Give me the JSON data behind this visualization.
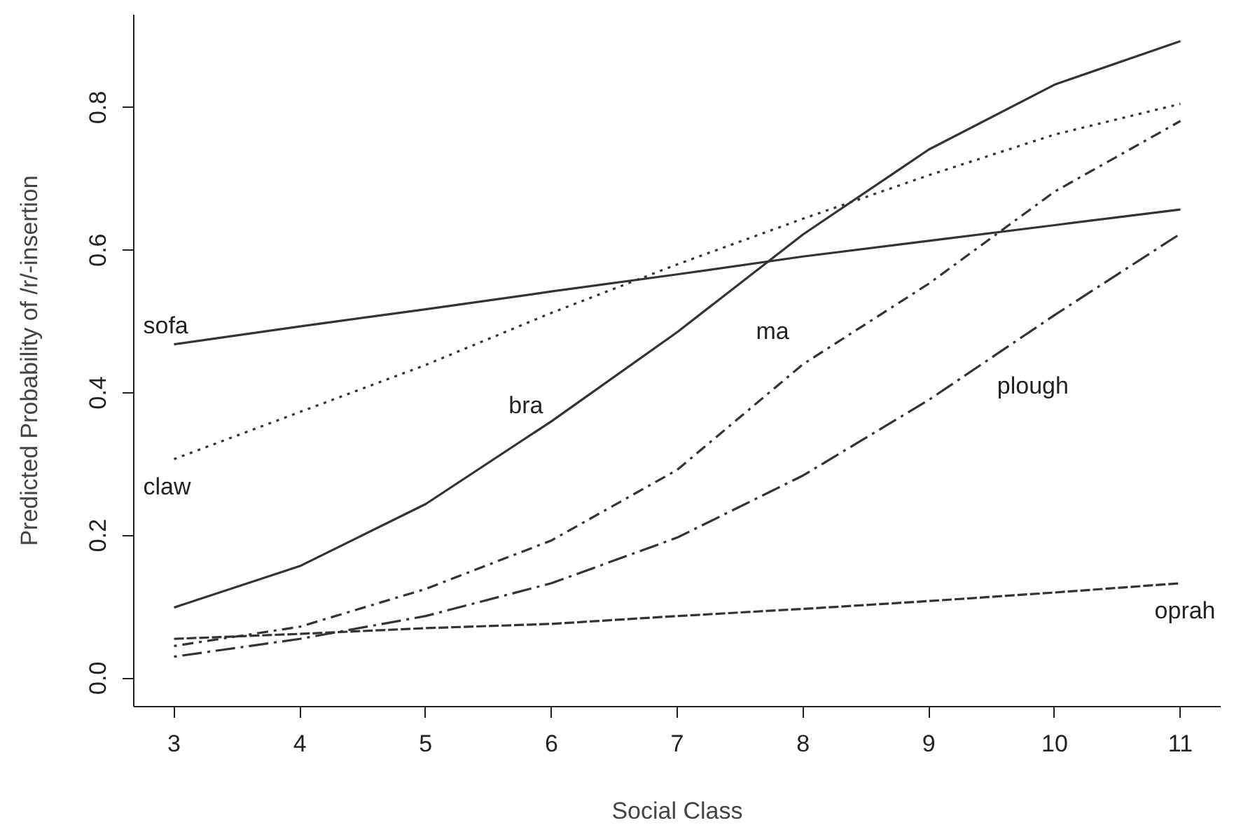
{
  "chart_data": {
    "type": "line",
    "xlabel": "Social Class",
    "ylabel": "Predicted Probability of /r/-insertion",
    "x": [
      3,
      4,
      5,
      6,
      7,
      8,
      9,
      10,
      11
    ],
    "xlim": [
      2.68,
      11.32
    ],
    "ylim": [
      -0.04,
      0.93
    ],
    "xticks": [
      3,
      4,
      5,
      6,
      7,
      8,
      9,
      10,
      11
    ],
    "yticks": [
      {
        "value": 0,
        "label": "0.0"
      },
      {
        "value": 0.2,
        "label": "0.2"
      },
      {
        "value": 0.4,
        "label": "0.4"
      },
      {
        "value": 0.6,
        "label": "0.6"
      },
      {
        "value": 0.8,
        "label": "0.8"
      }
    ],
    "grid": false,
    "marker": "none",
    "series": [
      {
        "name": "sofa",
        "color": "#333333",
        "line_style": "solid",
        "values": [
          0.468,
          0.493,
          0.517,
          0.542,
          0.566,
          0.591,
          0.613,
          0.635,
          0.657
        ]
      },
      {
        "name": "claw",
        "color": "#333333",
        "line_style": "dotted",
        "values": [
          0.307,
          0.373,
          0.439,
          0.512,
          0.58,
          0.644,
          0.705,
          0.762,
          0.805
        ]
      },
      {
        "name": "bra",
        "color": "#333333",
        "line_style": "solid",
        "values": [
          0.099,
          0.157,
          0.244,
          0.36,
          0.485,
          0.622,
          0.741,
          0.832,
          0.893
        ]
      },
      {
        "name": "ma",
        "color": "#333333",
        "line_style": "dashdot",
        "values": [
          0.045,
          0.072,
          0.125,
          0.193,
          0.292,
          0.44,
          0.553,
          0.682,
          0.781
        ]
      },
      {
        "name": "plough",
        "color": "#333333",
        "line_style": "longdashdot",
        "values": [
          0.03,
          0.055,
          0.087,
          0.133,
          0.197,
          0.284,
          0.39,
          0.509,
          0.623
        ]
      },
      {
        "name": "oprah",
        "color": "#333333",
        "line_style": "dashed",
        "values": [
          0.055,
          0.062,
          0.07,
          0.076,
          0.087,
          0.097,
          0.108,
          0.12,
          0.133
        ]
      }
    ]
  }
}
